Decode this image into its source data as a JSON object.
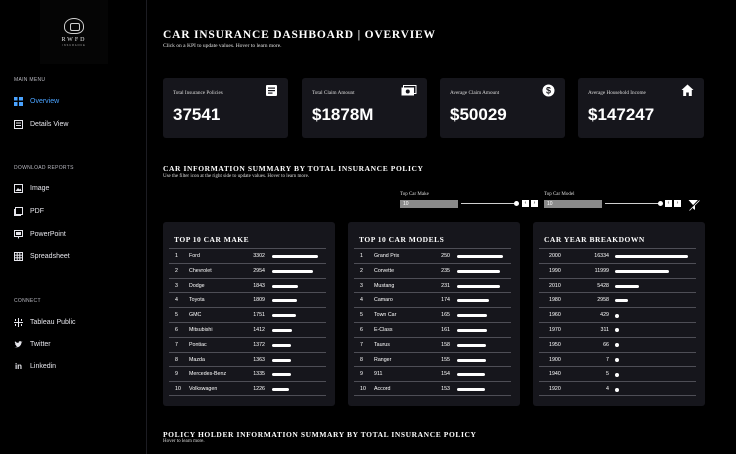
{
  "logo": {
    "brand": "RWFD",
    "sub": "INSURANCE"
  },
  "sidebar": {
    "main_menu_heading": "MAIN MENU",
    "main_items": [
      {
        "label": "Overview",
        "icon": "dashboard-icon",
        "active": true
      },
      {
        "label": "Details View",
        "icon": "details-icon",
        "active": false
      }
    ],
    "download_heading": "DOWNLOAD REPORTS",
    "download_items": [
      {
        "label": "Image",
        "icon": "image-icon"
      },
      {
        "label": "PDF",
        "icon": "pdf-icon"
      },
      {
        "label": "PowerPoint",
        "icon": "powerpoint-icon"
      },
      {
        "label": "Spreadsheet",
        "icon": "spreadsheet-icon"
      }
    ],
    "connect_heading": "CONNECT",
    "connect_items": [
      {
        "label": "Tableau Public",
        "icon": "tableau-icon"
      },
      {
        "label": "Twitter",
        "icon": "twitter-icon"
      },
      {
        "label": "Linkedin",
        "icon": "linkedin-icon"
      }
    ],
    "active_color": "#4aa3ff"
  },
  "header": {
    "title": "CAR INSURANCE DASHBOARD | OVERVIEW",
    "subtitle": "Click on a KPI to update values. Hover to learn more."
  },
  "kpis": [
    {
      "label": "Total Insurance Policies",
      "value": "37541",
      "icon": "document-icon"
    },
    {
      "label": "Total Claim Amount",
      "value": "$1878M",
      "icon": "cash-icon"
    },
    {
      "label": "Average Claim Amount",
      "value": "$50029",
      "icon": "dollar-coin-icon"
    },
    {
      "label": "Average Household Income",
      "value": "$147247",
      "icon": "house-icon"
    }
  ],
  "summary": {
    "title": "CAR INFORMATION SUMMARY BY TOTAL INSURANCE POLICY",
    "subtitle": "Use the filter icon at the right side to update values. Hover to learn more."
  },
  "filters": {
    "make": {
      "label": "Top Car Make",
      "value": "10",
      "slider_fraction": 1.0
    },
    "model": {
      "label": "Top Car Model",
      "value": "10",
      "slider_fraction": 1.0
    },
    "step_prev": "‹",
    "step_next": "›",
    "clear_icon": "filter-clear-icon"
  },
  "panels": [
    {
      "title": "TOP 10 CAR MAKE",
      "style": "bar",
      "max": 3302,
      "rows": [
        {
          "rank": "1",
          "name": "Ford",
          "value": 3302
        },
        {
          "rank": "2",
          "name": "Chevrolet",
          "value": 2954
        },
        {
          "rank": "3",
          "name": "Dodge",
          "value": 1843
        },
        {
          "rank": "4",
          "name": "Toyota",
          "value": 1809
        },
        {
          "rank": "5",
          "name": "GMC",
          "value": 1751
        },
        {
          "rank": "6",
          "name": "Mitsubishi",
          "value": 1412
        },
        {
          "rank": "7",
          "name": "Pontiac",
          "value": 1372
        },
        {
          "rank": "8",
          "name": "Mazda",
          "value": 1363
        },
        {
          "rank": "9",
          "name": "Mercedes-Benz",
          "value": 1335
        },
        {
          "rank": "10",
          "name": "Volkswagen",
          "value": 1226
        }
      ]
    },
    {
      "title": "TOP 10 CAR MODELS",
      "style": "bar",
      "max": 250,
      "rows": [
        {
          "rank": "1",
          "name": "Grand Prix",
          "value": 250
        },
        {
          "rank": "2",
          "name": "Corvette",
          "value": 235
        },
        {
          "rank": "3",
          "name": "Mustang",
          "value": 231
        },
        {
          "rank": "4",
          "name": "Camaro",
          "value": 174
        },
        {
          "rank": "5",
          "name": "Town Car",
          "value": 165
        },
        {
          "rank": "6",
          "name": "E-Class",
          "value": 161
        },
        {
          "rank": "7",
          "name": "Taurus",
          "value": 158
        },
        {
          "rank": "8",
          "name": "Ranger",
          "value": 155
        },
        {
          "rank": "9",
          "name": "911",
          "value": 154
        },
        {
          "rank": "10",
          "name": "Accord",
          "value": 153
        }
      ]
    },
    {
      "title": "CAR YEAR BREAKDOWN",
      "style": "year",
      "max": 16334,
      "rows": [
        {
          "year": "2000",
          "value": 16334
        },
        {
          "year": "1990",
          "value": 11999
        },
        {
          "year": "2010",
          "value": 5428
        },
        {
          "year": "1980",
          "value": 2958
        },
        {
          "year": "1960",
          "value": 429
        },
        {
          "year": "1970",
          "value": 311
        },
        {
          "year": "1950",
          "value": 66
        },
        {
          "year": "1900",
          "value": 7
        },
        {
          "year": "1940",
          "value": 5
        },
        {
          "year": "1920",
          "value": 4
        }
      ]
    }
  ],
  "policy_holder": {
    "title": "POLICY HOLDER INFORMATION SUMMARY BY TOTAL INSURANCE POLICY",
    "subtitle": "Hover to learn more."
  }
}
